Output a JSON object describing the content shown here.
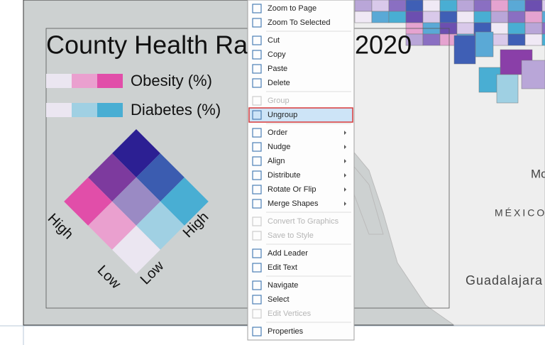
{
  "legend": {
    "title_parts": [
      "County Health Ra",
      "2020"
    ],
    "rows": [
      {
        "label": "Obesity (%)",
        "colors": [
          "#ebe6f1",
          "#eaa0cf",
          "#e14ea9"
        ]
      },
      {
        "label": "Diabetes (%)",
        "colors": [
          "#ebe6f1",
          "#a0d0e3",
          "#49aed3"
        ]
      }
    ],
    "grid_colors": [
      [
        "#2c1f93",
        "#3b5cb0",
        "#49aed3"
      ],
      [
        "#7d3a9e",
        "#9a8ac4",
        "#a0d0e3"
      ],
      [
        "#e14ea9",
        "#eaa0cf",
        "#ebe6f1"
      ]
    ],
    "axis_labels": {
      "left_high": "High",
      "left_low": "Low",
      "right_low": "Low",
      "right_high": "High"
    }
  },
  "map_labels": [
    "Mo",
    "MÉXICO",
    "Guadalajara"
  ],
  "menu": {
    "groups": [
      [
        {
          "label": "Zoom to Page"
        },
        {
          "label": "Zoom To Selected"
        }
      ],
      [
        {
          "label": "Cut"
        },
        {
          "label": "Copy"
        },
        {
          "label": "Paste"
        },
        {
          "label": "Delete"
        }
      ],
      [
        {
          "label": "Group",
          "disabled": true
        },
        {
          "label": "Ungroup",
          "selected": true
        }
      ],
      [
        {
          "label": "Order",
          "submenu": true
        },
        {
          "label": "Nudge",
          "submenu": true
        },
        {
          "label": "Align",
          "submenu": true
        },
        {
          "label": "Distribute",
          "submenu": true
        },
        {
          "label": "Rotate Or Flip",
          "submenu": true
        },
        {
          "label": "Merge Shapes",
          "submenu": true
        }
      ],
      [
        {
          "label": "Convert To Graphics",
          "disabled": true
        },
        {
          "label": "Save to Style",
          "disabled": true
        }
      ],
      [
        {
          "label": "Add Leader"
        },
        {
          "label": "Edit Text"
        }
      ],
      [
        {
          "label": "Navigate"
        },
        {
          "label": "Select"
        },
        {
          "label": "Edit Vertices",
          "disabled": true
        }
      ],
      [
        {
          "label": "Properties"
        }
      ]
    ]
  }
}
